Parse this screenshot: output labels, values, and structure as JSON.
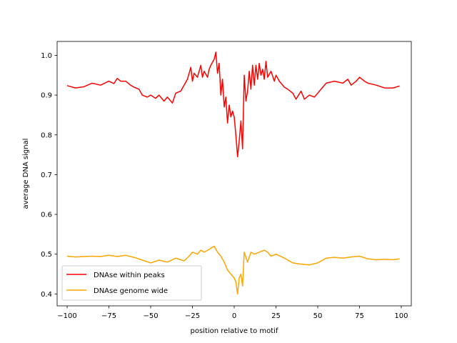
{
  "chart_data": {
    "type": "line",
    "title": "",
    "xlabel": "position relative to motif",
    "ylabel": "average DNA signal",
    "xlim": [
      -106,
      106
    ],
    "ylim": [
      0.37,
      1.035
    ],
    "xticks": [
      -100,
      -75,
      -50,
      -25,
      0,
      25,
      50,
      75,
      100
    ],
    "yticks": [
      0.4,
      0.5,
      0.6,
      0.7,
      0.8,
      0.9,
      1.0
    ],
    "xtick_labels": [
      "−100",
      "−75",
      "−50",
      "−25",
      "0",
      "25",
      "50",
      "75",
      "100"
    ],
    "ytick_labels": [
      "0.4",
      "0.5",
      "0.6",
      "0.7",
      "0.8",
      "0.9",
      "1.0"
    ],
    "grid": false,
    "legend_position": "lower-left",
    "series": [
      {
        "name": "DNAse within peaks",
        "color": "#ff0000",
        "x": [
          -100,
          -95,
          -90,
          -85,
          -80,
          -75,
          -72,
          -70,
          -68,
          -65,
          -62,
          -60,
          -57,
          -55,
          -52,
          -50,
          -47,
          -45,
          -42,
          -40,
          -37,
          -35,
          -32,
          -30,
          -28,
          -26,
          -25,
          -24,
          -22,
          -20,
          -19,
          -18,
          -16,
          -15,
          -14,
          -12,
          -11,
          -10,
          -9,
          -8,
          -7,
          -6,
          -5,
          -4,
          -3,
          -2,
          -1,
          0,
          1,
          2,
          3,
          4,
          5,
          6,
          7,
          8,
          9,
          10,
          11,
          12,
          13,
          14,
          15,
          16,
          17,
          18,
          19,
          20,
          22,
          24,
          25,
          27,
          30,
          32,
          35,
          37,
          40,
          42,
          45,
          48,
          50,
          55,
          60,
          65,
          68,
          70,
          73,
          75,
          78,
          80,
          85,
          90,
          95,
          99
        ],
        "values": [
          0.924,
          0.918,
          0.921,
          0.93,
          0.925,
          0.935,
          0.929,
          0.942,
          0.935,
          0.935,
          0.925,
          0.92,
          0.915,
          0.9,
          0.895,
          0.9,
          0.892,
          0.9,
          0.885,
          0.895,
          0.88,
          0.905,
          0.91,
          0.925,
          0.94,
          0.97,
          0.935,
          0.955,
          0.945,
          0.975,
          0.945,
          0.96,
          0.945,
          0.965,
          0.975,
          0.99,
          1.008,
          0.955,
          0.98,
          0.9,
          0.94,
          0.87,
          0.895,
          0.83,
          0.875,
          0.845,
          0.86,
          0.845,
          0.8,
          0.745,
          0.785,
          0.835,
          0.765,
          0.95,
          0.885,
          0.91,
          0.96,
          0.915,
          0.975,
          0.925,
          0.975,
          0.94,
          0.98,
          0.95,
          0.965,
          0.94,
          0.985,
          0.945,
          0.96,
          0.935,
          0.95,
          0.935,
          0.92,
          0.915,
          0.905,
          0.89,
          0.91,
          0.89,
          0.9,
          0.895,
          0.905,
          0.93,
          0.935,
          0.93,
          0.94,
          0.925,
          0.935,
          0.945,
          0.935,
          0.93,
          0.925,
          0.918,
          0.918,
          0.923
        ]
      },
      {
        "name": "DNAse genome wide",
        "color": "#ffa500",
        "x": [
          -100,
          -95,
          -90,
          -85,
          -80,
          -75,
          -70,
          -65,
          -60,
          -55,
          -50,
          -45,
          -40,
          -35,
          -30,
          -27,
          -25,
          -22,
          -20,
          -18,
          -15,
          -12,
          -10,
          -8,
          -6,
          -4,
          -2,
          0,
          1,
          2,
          3,
          4,
          5,
          6,
          8,
          10,
          12,
          15,
          18,
          20,
          22,
          25,
          30,
          35,
          40,
          45,
          50,
          55,
          60,
          65,
          70,
          75,
          80,
          85,
          90,
          95,
          99
        ],
        "values": [
          0.495,
          0.493,
          0.494,
          0.495,
          0.494,
          0.497,
          0.494,
          0.497,
          0.492,
          0.485,
          0.478,
          0.485,
          0.48,
          0.49,
          0.483,
          0.495,
          0.505,
          0.5,
          0.51,
          0.505,
          0.512,
          0.52,
          0.505,
          0.495,
          0.48,
          0.46,
          0.45,
          0.44,
          0.43,
          0.4,
          0.44,
          0.45,
          0.42,
          0.505,
          0.48,
          0.505,
          0.5,
          0.505,
          0.51,
          0.505,
          0.495,
          0.5,
          0.49,
          0.478,
          0.475,
          0.473,
          0.478,
          0.49,
          0.492,
          0.49,
          0.493,
          0.495,
          0.488,
          0.486,
          0.487,
          0.486,
          0.488
        ]
      }
    ]
  }
}
